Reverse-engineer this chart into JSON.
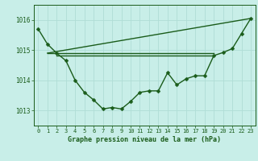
{
  "title": "Graphe pression niveau de la mer (hPa)",
  "bg_color": "#c8eee8",
  "grid_color": "#b0ddd6",
  "line_color": "#1a5c1a",
  "x_labels": [
    "0",
    "1",
    "2",
    "3",
    "4",
    "5",
    "6",
    "7",
    "8",
    "9",
    "10",
    "11",
    "12",
    "13",
    "14",
    "15",
    "16",
    "17",
    "18",
    "19",
    "20",
    "21",
    "22",
    "23"
  ],
  "ylim": [
    1012.5,
    1016.5
  ],
  "yticks": [
    1013,
    1014,
    1015,
    1016
  ],
  "main_series": [
    1015.7,
    1015.2,
    1014.9,
    1014.65,
    1014.0,
    1013.6,
    1013.35,
    1013.05,
    1013.1,
    1013.05,
    1013.3,
    1013.6,
    1013.65,
    1013.65,
    1014.25,
    1013.85,
    1014.05,
    1014.15,
    1014.15,
    1014.82,
    1014.92,
    1015.05,
    1015.55,
    1016.05
  ],
  "flat_line": [
    [
      1,
      1014.9
    ],
    [
      19,
      1014.9
    ]
  ],
  "flat_line2": [
    [
      2,
      1014.82
    ],
    [
      19,
      1014.82
    ]
  ],
  "diag_line": [
    [
      1,
      1014.9
    ],
    [
      23,
      1016.05
    ]
  ],
  "font_color": "#1a5c1a",
  "marker_size": 2.5,
  "line_width": 1.0
}
